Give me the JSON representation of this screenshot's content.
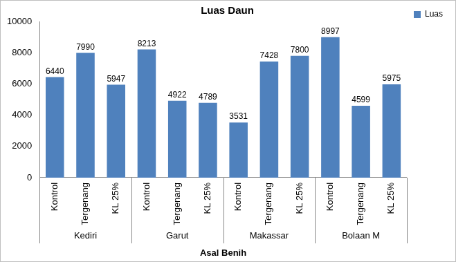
{
  "chart_data": {
    "type": "bar",
    "title": "Luas Daun",
    "x_label": "Asal Benih",
    "categories": [
      "Kontrol",
      "Tergenang",
      "KL 25%",
      "Kontrol",
      "Tergenang",
      "KL 25%",
      "Kontrol",
      "Tergenang",
      "KL 25%",
      "Kontrol",
      "Tergenang",
      "KL 25%"
    ],
    "groups": [
      "Kediri",
      "Garut",
      "Makassar",
      "Bolaan M"
    ],
    "series": [
      {
        "name": "Luas",
        "color": "#4f81bd",
        "values": [
          6440,
          7990,
          5947,
          8213,
          4922,
          4789,
          3531,
          7428,
          7800,
          8997,
          4599,
          5975
        ]
      }
    ],
    "ylim": [
      0,
      10000
    ],
    "yticks": [
      0,
      2000,
      4000,
      6000,
      8000,
      10000
    ],
    "grid": false,
    "legend": "top-right",
    "data_labels": true
  }
}
